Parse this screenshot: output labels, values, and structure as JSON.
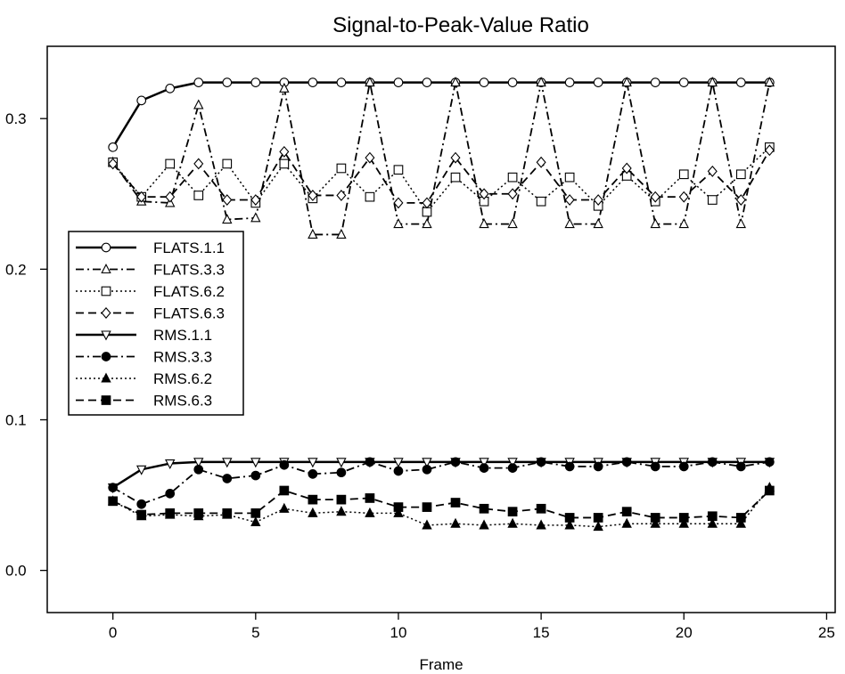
{
  "chart_data": {
    "type": "line",
    "title": "Signal-to-Peak-Value Ratio",
    "xlabel": "Frame",
    "ylabel": "",
    "xlim": [
      -2.3,
      25.3
    ],
    "ylim": [
      -0.028,
      0.348
    ],
    "x_ticks": [
      0,
      5,
      10,
      15,
      20,
      25
    ],
    "x_tick_labels": [
      "0",
      "5",
      "10",
      "15",
      "20",
      "25"
    ],
    "y_ticks": [
      0.0,
      0.1,
      0.2,
      0.3
    ],
    "y_tick_labels": [
      "0.0",
      "0.1",
      "0.2",
      "0.3"
    ],
    "grid": false,
    "legend_position": "left",
    "x": [
      0,
      1,
      2,
      3,
      4,
      5,
      6,
      7,
      8,
      9,
      10,
      11,
      12,
      13,
      14,
      15,
      16,
      17,
      18,
      19,
      20,
      21,
      22,
      23
    ],
    "series": [
      {
        "name": "FLATS.1.1",
        "style": "solid",
        "width": 2.5,
        "marker": "circle-open",
        "values": [
          0.281,
          0.312,
          0.32,
          0.324,
          0.324,
          0.324,
          0.324,
          0.324,
          0.324,
          0.324,
          0.324,
          0.324,
          0.324,
          0.324,
          0.324,
          0.324,
          0.324,
          0.324,
          0.324,
          0.324,
          0.324,
          0.324,
          0.324,
          0.324
        ]
      },
      {
        "name": "FLATS.3.3",
        "style": "dashdot",
        "width": 1.8,
        "marker": "triangle-up-open",
        "values": [
          0.271,
          0.245,
          0.244,
          0.309,
          0.233,
          0.234,
          0.32,
          0.223,
          0.223,
          0.324,
          0.23,
          0.23,
          0.324,
          0.23,
          0.23,
          0.324,
          0.23,
          0.23,
          0.324,
          0.23,
          0.23,
          0.324,
          0.23,
          0.324
        ]
      },
      {
        "name": "FLATS.6.2",
        "style": "dotted",
        "width": 1.5,
        "marker": "square-open",
        "values": [
          0.271,
          0.248,
          0.27,
          0.249,
          0.27,
          0.244,
          0.27,
          0.247,
          0.267,
          0.248,
          0.266,
          0.238,
          0.261,
          0.245,
          0.261,
          0.245,
          0.261,
          0.242,
          0.262,
          0.245,
          0.263,
          0.246,
          0.263,
          0.281
        ]
      },
      {
        "name": "FLATS.6.3",
        "style": "dashed",
        "width": 1.8,
        "marker": "diamond-open",
        "values": [
          0.27,
          0.248,
          0.248,
          0.27,
          0.246,
          0.246,
          0.278,
          0.249,
          0.249,
          0.274,
          0.244,
          0.244,
          0.274,
          0.25,
          0.25,
          0.271,
          0.246,
          0.246,
          0.267,
          0.248,
          0.248,
          0.265,
          0.246,
          0.279
        ]
      },
      {
        "name": "RMS.1.1",
        "style": "solid",
        "width": 2.5,
        "marker": "triangle-down-open",
        "values": [
          0.055,
          0.067,
          0.071,
          0.072,
          0.072,
          0.072,
          0.072,
          0.072,
          0.072,
          0.072,
          0.072,
          0.072,
          0.072,
          0.072,
          0.072,
          0.072,
          0.072,
          0.072,
          0.072,
          0.072,
          0.072,
          0.072,
          0.072,
          0.072
        ]
      },
      {
        "name": "RMS.3.3",
        "style": "dashdot",
        "width": 1.8,
        "marker": "circle-filled",
        "values": [
          0.055,
          0.044,
          0.051,
          0.067,
          0.061,
          0.063,
          0.07,
          0.064,
          0.065,
          0.072,
          0.066,
          0.067,
          0.072,
          0.068,
          0.068,
          0.072,
          0.069,
          0.069,
          0.072,
          0.069,
          0.069,
          0.072,
          0.069,
          0.072
        ]
      },
      {
        "name": "RMS.6.2",
        "style": "dotted",
        "width": 1.5,
        "marker": "triangle-up-filled",
        "values": [
          0.046,
          0.036,
          0.037,
          0.036,
          0.037,
          0.032,
          0.041,
          0.038,
          0.039,
          0.038,
          0.038,
          0.03,
          0.031,
          0.03,
          0.031,
          0.03,
          0.03,
          0.029,
          0.031,
          0.031,
          0.031,
          0.031,
          0.031,
          0.055
        ]
      },
      {
        "name": "RMS.6.3",
        "style": "dashed",
        "width": 1.8,
        "marker": "square-filled",
        "values": [
          0.046,
          0.037,
          0.038,
          0.038,
          0.038,
          0.038,
          0.053,
          0.047,
          0.047,
          0.048,
          0.042,
          0.042,
          0.045,
          0.041,
          0.039,
          0.041,
          0.035,
          0.035,
          0.039,
          0.035,
          0.035,
          0.036,
          0.035,
          0.053
        ]
      }
    ]
  }
}
